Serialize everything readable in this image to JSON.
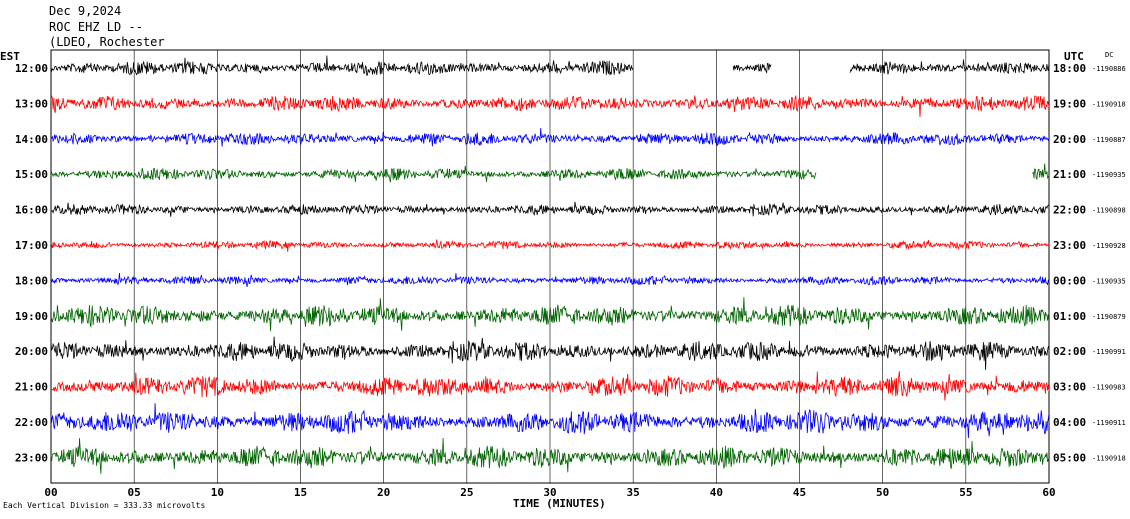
{
  "header": {
    "date": "Dec 9,2024",
    "station": "ROC EHZ LD --",
    "network": "(LDEO, Rochester"
  },
  "left_axis_label": "EST",
  "right_axis_label": "UTC",
  "dc_label": "DC",
  "x_axis_label": "TIME (MINUTES)",
  "footer_note": "Each Vertical Division =  333.33 microvolts",
  "colors": {
    "black": "#000000",
    "red": "#ff0000",
    "blue": "#0000ff",
    "green": "#006400"
  },
  "chart_data": {
    "type": "line",
    "xlabel": "TIME (MINUTES)",
    "xlim": [
      0,
      60
    ],
    "x_ticks": [
      "00",
      "05",
      "10",
      "15",
      "20",
      "25",
      "30",
      "35",
      "40",
      "45",
      "50",
      "55",
      "60"
    ],
    "traces": [
      {
        "est": "12:00",
        "utc": "18:00",
        "dc": "-1190886",
        "color": "black",
        "amp": 0.55,
        "gaps": [
          [
            35,
            41
          ],
          [
            43.3,
            48
          ]
        ]
      },
      {
        "est": "13:00",
        "utc": "19:00",
        "dc": "-1190918",
        "color": "red",
        "amp": 0.6,
        "gaps": []
      },
      {
        "est": "14:00",
        "utc": "20:00",
        "dc": "-1190887",
        "color": "blue",
        "amp": 0.5,
        "gaps": []
      },
      {
        "est": "15:00",
        "utc": "21:00",
        "dc": "-1190935",
        "color": "green",
        "amp": 0.45,
        "gaps": [
          [
            46,
            59
          ]
        ]
      },
      {
        "est": "16:00",
        "utc": "22:00",
        "dc": "-1190898",
        "color": "black",
        "amp": 0.4,
        "gaps": []
      },
      {
        "est": "17:00",
        "utc": "23:00",
        "dc": "-1190928",
        "color": "red",
        "amp": 0.3,
        "gaps": []
      },
      {
        "est": "18:00",
        "utc": "00:00",
        "dc": "-1190935",
        "color": "blue",
        "amp": 0.35,
        "gaps": []
      },
      {
        "est": "19:00",
        "utc": "01:00",
        "dc": "-1190879",
        "color": "green",
        "amp": 0.8,
        "gaps": []
      },
      {
        "est": "20:00",
        "utc": "02:00",
        "dc": "-1190991",
        "color": "black",
        "amp": 0.75,
        "gaps": []
      },
      {
        "est": "21:00",
        "utc": "03:00",
        "dc": "-1190983",
        "color": "red",
        "amp": 0.8,
        "gaps": []
      },
      {
        "est": "22:00",
        "utc": "04:00",
        "dc": "-1190911",
        "color": "blue",
        "amp": 0.9,
        "gaps": []
      },
      {
        "est": "23:00",
        "utc": "05:00",
        "dc": "-1190918",
        "color": "green",
        "amp": 0.85,
        "gaps": []
      }
    ]
  }
}
